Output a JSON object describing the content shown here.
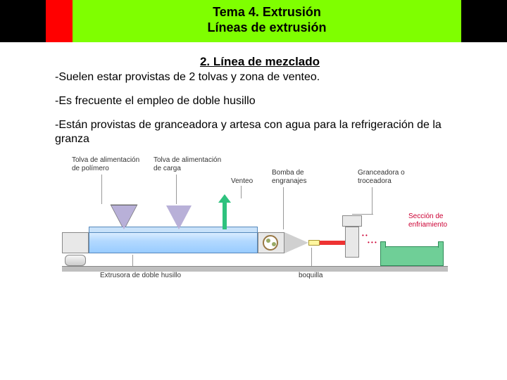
{
  "header": {
    "line1": "Tema 4. Extrusión",
    "line2": "Líneas de extrusión",
    "colors": {
      "black": "#000000",
      "red": "#ff0000",
      "green": "#7fff00"
    }
  },
  "subtitle": "2. Línea de mezclado",
  "points": [
    "-Suelen estar provistas de 2 tolvas y zona de venteo.",
    "-Es frecuente el empleo de doble husillo",
    "-Están provistas de granceadora y artesa con agua para la refrigeración de la granza"
  ],
  "diagram": {
    "labels": {
      "tolva_polimero": "Tolva de alimentación\nde polímero",
      "tolva_carga": "Tolva de alimentación\nde carga",
      "venteo": "Venteo",
      "bomba": "Bomba de\nengranajes",
      "extrusora": "Extrusora de doble husillo",
      "boquilla": "boquilla",
      "granceadora": "Granceadora o\ntroceadora",
      "enfriamiento": "Sección de\nenfriamiento"
    },
    "colors": {
      "barrel": "#b3d9ff",
      "hopper": "#b8b0d8",
      "venteo_arrow": "#2ec27e",
      "die": "#fff6a0",
      "connector": "#e33333",
      "tank": "#6fcf97",
      "base": "#bfbfbf",
      "particles": "#cc0033"
    }
  }
}
